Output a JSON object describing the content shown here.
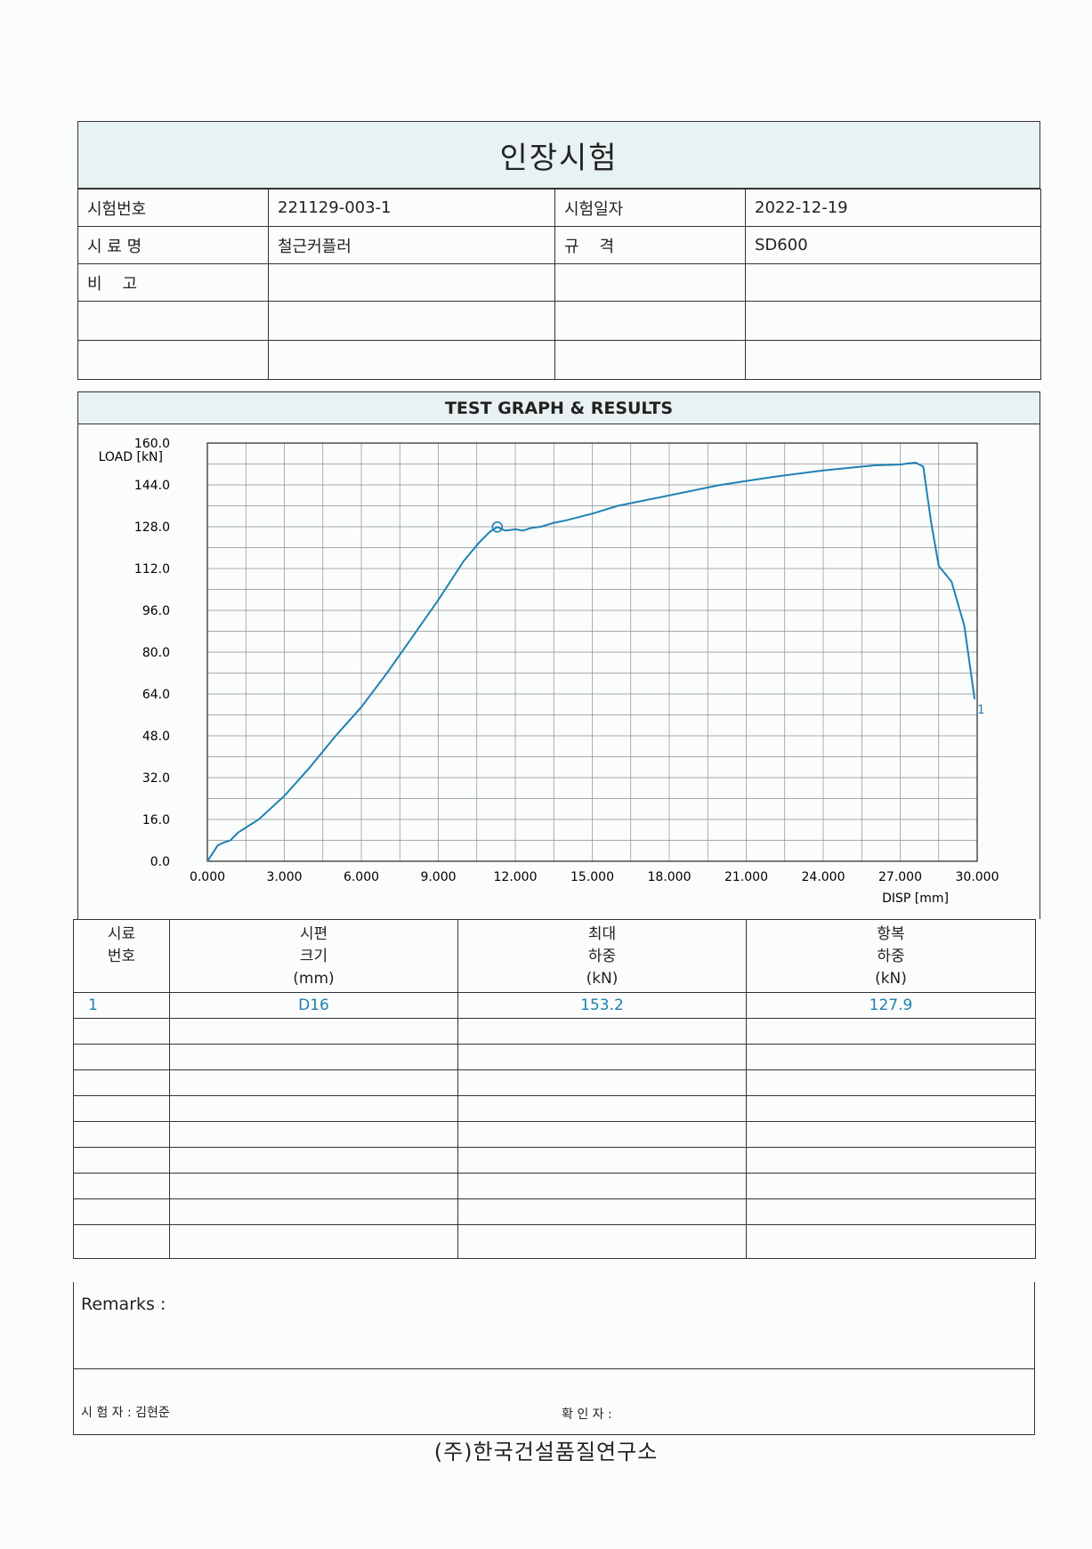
{
  "title": "인장시험",
  "info": {
    "test_no_label": "시험번호",
    "test_no": "221129-003-1",
    "test_date_label": "시험일자",
    "test_date": "2022-12-19",
    "sample_label": "시 료 명",
    "sample": "철근커플러",
    "spec_label": "규    격",
    "spec": "SD600",
    "note_label": "비    고"
  },
  "graph_title": "TEST GRAPH & RESULTS",
  "chart_data": {
    "type": "line",
    "ylabel": "LOAD [kN]",
    "xlabel": "DISP [mm]",
    "xlim": [
      0,
      30
    ],
    "ylim": [
      0,
      160
    ],
    "x_ticks": [
      "0.000",
      "3.000",
      "6.000",
      "9.000",
      "12.000",
      "15.000",
      "18.000",
      "21.000",
      "24.000",
      "27.000",
      "30.000"
    ],
    "y_ticks": [
      "0.0",
      "16.0",
      "32.0",
      "48.0",
      "64.0",
      "80.0",
      "96.0",
      "112.0",
      "128.0",
      "144.0",
      "160.0"
    ],
    "series": [
      {
        "label": "1",
        "color": "#1f82b4",
        "x": [
          0,
          0.2,
          0.4,
          0.6,
          0.9,
          1.2,
          2.0,
          3.0,
          4.0,
          5.0,
          6.0,
          7.0,
          8.0,
          9.0,
          10.0,
          10.6,
          11.0,
          11.3,
          11.6,
          12.0,
          12.3,
          12.6,
          13.0,
          13.5,
          14.0,
          15.0,
          16.0,
          18.0,
          20.0,
          21.0,
          22.0,
          24.0,
          26.0,
          27.0,
          27.3,
          27.6,
          27.9,
          28.2,
          28.5,
          29.0,
          29.5,
          29.9
        ],
        "y": [
          0,
          3,
          6,
          7,
          8,
          11,
          16,
          25,
          36,
          48,
          59,
          72,
          86,
          100,
          115,
          122,
          126,
          127.9,
          126.5,
          127,
          126.5,
          127.5,
          128,
          129.5,
          130.5,
          133,
          136,
          140,
          144,
          145.5,
          147,
          149.5,
          151.5,
          151.8,
          152.2,
          152.5,
          151,
          130,
          113,
          107,
          90,
          62
        ]
      }
    ],
    "yield_point": {
      "x": 11.3,
      "y": 127.9
    },
    "grid": true
  },
  "results": {
    "headers": [
      [
        "시료",
        "번호"
      ],
      [
        "시편",
        "크기",
        "(mm)"
      ],
      [
        "최대",
        "하중",
        "(kN)"
      ],
      [
        "항복",
        "하중",
        "(kN)"
      ]
    ],
    "rows": [
      {
        "no": "1",
        "size": "D16",
        "max_load": "153.2",
        "yield_load": "127.9"
      }
    ]
  },
  "remarks_label": "Remarks :",
  "tester_label": "시 험 자 : 김현준",
  "confirm_label": "확 인 자 :",
  "company": "(주)한국건설품질연구소"
}
